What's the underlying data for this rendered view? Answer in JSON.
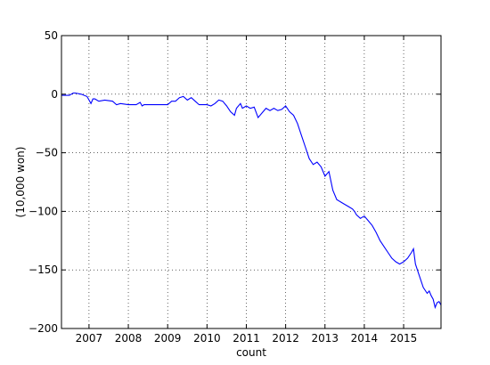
{
  "chart_data": {
    "type": "line",
    "title": "",
    "xlabel": "count",
    "ylabel": "(10,000 won)",
    "xlim": [
      2006.3,
      2015.95
    ],
    "ylim": [
      -200,
      50
    ],
    "grid": true,
    "legend": "none",
    "line_color": "#0000ff",
    "xticks": [
      2007,
      2008,
      2009,
      2010,
      2011,
      2012,
      2013,
      2014,
      2015
    ],
    "xtick_labels": [
      "2007",
      "2008",
      "2009",
      "2010",
      "2011",
      "2012",
      "2013",
      "2014",
      "2015"
    ],
    "yticks": [
      50,
      0,
      -50,
      -100,
      -150,
      -200
    ],
    "ytick_labels": [
      "50",
      "0",
      "−50",
      "−100",
      "−150",
      "−200"
    ],
    "series": [
      {
        "x": [
          2006.3,
          2006.5,
          2006.6,
          2006.65,
          2006.8,
          2006.95,
          2007.05,
          2007.1,
          2007.15,
          2007.25,
          2007.4,
          2007.6,
          2007.7,
          2007.8,
          2008.0,
          2008.2,
          2008.3,
          2008.35,
          2008.4,
          2008.6,
          2008.8,
          2009.0,
          2009.1,
          2009.2,
          2009.3,
          2009.4,
          2009.5,
          2009.6,
          2009.7,
          2009.8,
          2010.0,
          2010.1,
          2010.2,
          2010.3,
          2010.4,
          2010.5,
          2010.6,
          2010.7,
          2010.75,
          2010.85,
          2010.9,
          2011.0,
          2011.1,
          2011.2,
          2011.3,
          2011.4,
          2011.5,
          2011.6,
          2011.7,
          2011.8,
          2011.9,
          2012.0,
          2012.1,
          2012.2,
          2012.3,
          2012.4,
          2012.5,
          2012.6,
          2012.7,
          2012.8,
          2012.9,
          2013.0,
          2013.1,
          2013.2,
          2013.3,
          2013.4,
          2013.5,
          2013.6,
          2013.7,
          2013.75,
          2013.8,
          2013.9,
          2014.0,
          2014.1,
          2014.2,
          2014.3,
          2014.4,
          2014.5,
          2014.6,
          2014.7,
          2014.8,
          2014.9,
          2015.0,
          2015.1,
          2015.2,
          2015.25,
          2015.3,
          2015.4,
          2015.5,
          2015.6,
          2015.65,
          2015.7,
          2015.75,
          2015.8,
          2015.85,
          2015.9,
          2015.95
        ],
        "y": [
          -1,
          -1,
          1,
          1,
          0,
          -2,
          -8,
          -4,
          -4,
          -6,
          -5,
          -6,
          -9,
          -8,
          -9,
          -9,
          -7,
          -10,
          -9,
          -9,
          -9,
          -9,
          -6,
          -6,
          -3,
          -2,
          -5,
          -3,
          -6,
          -9,
          -9,
          -10,
          -8,
          -5,
          -6,
          -10,
          -15,
          -18,
          -12,
          -8,
          -12,
          -10,
          -12,
          -11,
          -20,
          -16,
          -12,
          -14,
          -12,
          -14,
          -13,
          -10,
          -15,
          -18,
          -25,
          -35,
          -45,
          -55,
          -60,
          -58,
          -62,
          -70,
          -66,
          -82,
          -90,
          -92,
          -94,
          -96,
          -98,
          -100,
          -103,
          -106,
          -104,
          -108,
          -112,
          -118,
          -125,
          -130,
          -135,
          -140,
          -143,
          -145,
          -143,
          -140,
          -135,
          -132,
          -145,
          -155,
          -165,
          -170,
          -168,
          -172,
          -175,
          -182,
          -178,
          -177,
          -180
        ]
      }
    ]
  }
}
